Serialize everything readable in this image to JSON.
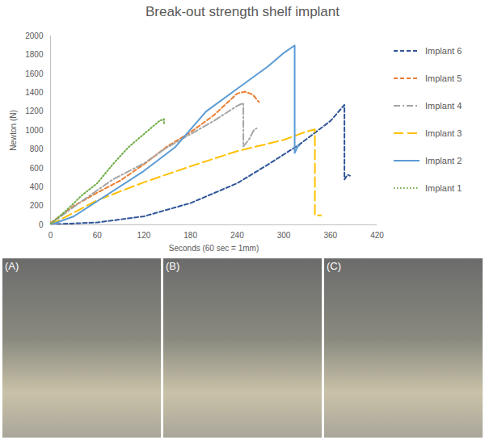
{
  "chart_data": {
    "type": "line",
    "title": "Break-out strength shelf implant",
    "x_label": "Seconds (60 sec = 1mm)",
    "y_label": "Newton (N)",
    "xlim": [
      0,
      420
    ],
    "ylim": [
      0,
      2000
    ],
    "xticks": [
      0,
      60,
      120,
      180,
      240,
      300,
      360,
      420
    ],
    "yticks": [
      0,
      200,
      400,
      600,
      800,
      1000,
      1200,
      1400,
      1600,
      1800,
      2000
    ],
    "grid": false,
    "legend": "right",
    "series": [
      {
        "name": "Implant 6",
        "color": "#2f5597",
        "line_style": "dashed",
        "x": [
          0,
          60,
          120,
          180,
          220,
          240,
          280,
          320,
          360,
          378,
          378,
          382,
          385
        ],
        "values": [
          5,
          25,
          90,
          230,
          370,
          440,
          640,
          850,
          1100,
          1270,
          480,
          530,
          520
        ]
      },
      {
        "name": "Implant 5",
        "color": "#ed7d31",
        "line_style": "dashed",
        "x": [
          0,
          30,
          60,
          90,
          120,
          150,
          180,
          210,
          240,
          250,
          260,
          268
        ],
        "values": [
          20,
          200,
          340,
          470,
          640,
          830,
          980,
          1160,
          1390,
          1410,
          1380,
          1300
        ]
      },
      {
        "name": "Implant 4",
        "color": "#a5a5a5",
        "line_style": "dashdot",
        "x": [
          0,
          40,
          80,
          120,
          150,
          180,
          210,
          240,
          248,
          248,
          255,
          262,
          265
        ],
        "values": [
          10,
          250,
          480,
          650,
          820,
          960,
          1100,
          1260,
          1290,
          830,
          900,
          1010,
          1020
        ]
      },
      {
        "name": "Implant 3",
        "color": "#ffc000",
        "line_style": "longdash",
        "x": [
          0,
          30,
          60,
          120,
          180,
          240,
          300,
          330,
          340,
          340,
          348
        ],
        "values": [
          0,
          130,
          260,
          450,
          620,
          780,
          900,
          990,
          1010,
          100,
          100
        ]
      },
      {
        "name": "Implant 2",
        "color": "#5b9bd5",
        "line_style": "solid",
        "x": [
          0,
          30,
          60,
          120,
          160,
          200,
          240,
          280,
          300,
          314,
          314,
          318,
          320
        ],
        "values": [
          0,
          90,
          250,
          570,
          820,
          1200,
          1440,
          1680,
          1820,
          1900,
          760,
          830,
          840
        ]
      },
      {
        "name": "Implant 1",
        "color": "#70ad47",
        "line_style": "dotted",
        "x": [
          0,
          20,
          40,
          60,
          80,
          100,
          120,
          140,
          146,
          146
        ],
        "values": [
          10,
          150,
          310,
          440,
          640,
          820,
          960,
          1100,
          1120,
          1060
        ]
      }
    ]
  },
  "panel_labels": [
    "(A)",
    "(B)",
    "(C)"
  ]
}
